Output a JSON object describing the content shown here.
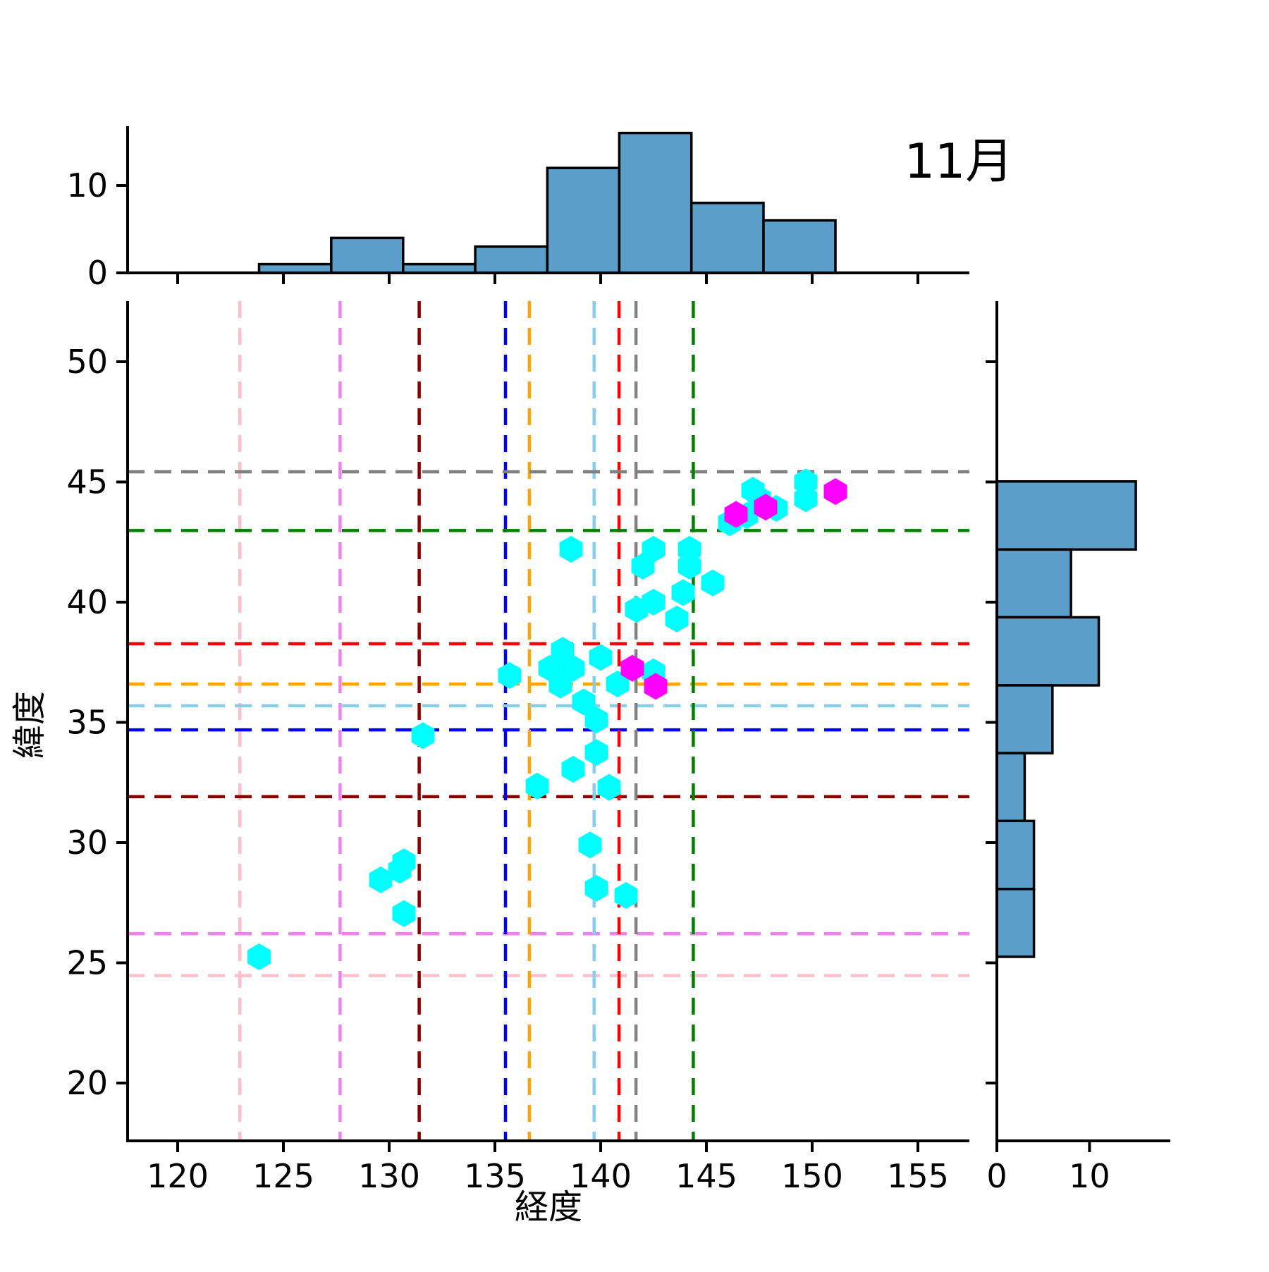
{
  "title": "11月",
  "axes": {
    "xlabel": "経度",
    "ylabel": "緯度",
    "xticks": [
      120,
      125,
      130,
      135,
      140,
      145,
      150,
      155
    ],
    "yticks": [
      20,
      25,
      30,
      35,
      40,
      45,
      50
    ],
    "xlim": [
      117.6,
      157.4
    ],
    "ylim": [
      17.6,
      52.5
    ]
  },
  "colors": {
    "hist_fill": "#5b9ec9",
    "hist_edge": "#000000",
    "scatter_main": "#00ffff",
    "scatter_highlight": "#ff00ff",
    "axis": "#000000"
  },
  "chart_data": {
    "type": "scatter",
    "layout": "joint-plot-with-marginal-histograms",
    "title": "11月",
    "xlabel": "経度",
    "ylabel": "緯度",
    "grid": false,
    "scatter": {
      "marker": "hexagon",
      "cyan_points": [
        [
          149.7,
          45.0
        ],
        [
          149.7,
          44.3
        ],
        [
          147.2,
          44.65
        ],
        [
          147.5,
          44.3
        ],
        [
          148.3,
          43.9
        ],
        [
          146.9,
          43.6
        ],
        [
          146.1,
          43.3
        ],
        [
          138.6,
          42.2
        ],
        [
          142.5,
          42.2
        ],
        [
          144.2,
          42.2
        ],
        [
          142.0,
          41.5
        ],
        [
          144.2,
          41.5
        ],
        [
          145.3,
          40.8
        ],
        [
          143.9,
          40.4
        ],
        [
          142.5,
          40.0
        ],
        [
          141.7,
          39.7
        ],
        [
          143.6,
          39.3
        ],
        [
          138.2,
          38.0
        ],
        [
          140.0,
          37.7
        ],
        [
          137.6,
          37.25
        ],
        [
          138.7,
          37.25
        ],
        [
          142.5,
          37.1
        ],
        [
          135.7,
          36.95
        ],
        [
          140.8,
          36.6
        ],
        [
          138.1,
          36.55
        ],
        [
          139.2,
          35.85
        ],
        [
          139.8,
          35.1
        ],
        [
          131.6,
          34.45
        ],
        [
          139.8,
          33.75
        ],
        [
          138.7,
          33.05
        ],
        [
          137.0,
          32.35
        ],
        [
          140.4,
          32.3
        ],
        [
          139.5,
          29.9
        ],
        [
          130.7,
          29.2
        ],
        [
          130.5,
          28.85
        ],
        [
          129.6,
          28.45
        ],
        [
          139.8,
          28.1
        ],
        [
          141.2,
          27.8
        ],
        [
          130.7,
          27.05
        ],
        [
          123.85,
          25.25
        ]
      ],
      "magenta_points": [
        [
          151.1,
          44.6
        ],
        [
          147.8,
          43.95
        ],
        [
          146.4,
          43.65
        ],
        [
          141.5,
          37.25
        ],
        [
          142.6,
          36.5
        ]
      ]
    },
    "top_histogram": {
      "axis": "longitude",
      "bin_edges": [
        123.85,
        127.26,
        130.66,
        134.07,
        137.48,
        140.88,
        144.29,
        147.7,
        151.1
      ],
      "counts": [
        1,
        4,
        1,
        3,
        12,
        16,
        8,
        6
      ],
      "tick_values": [
        0,
        10
      ]
    },
    "right_histogram": {
      "axis": "latitude",
      "bin_edges_top_to_bottom": [
        45.02,
        42.19,
        39.37,
        36.54,
        33.72,
        30.9,
        28.07,
        25.25
      ],
      "counts_top_to_bottom": [
        15,
        8,
        11,
        6,
        3,
        4,
        4
      ],
      "tick_values": [
        0,
        10
      ]
    },
    "reference_lines": [
      {
        "color_name": "pink",
        "hex": "#FFC0CB",
        "lon": 122.94,
        "lat": 24.47
      },
      {
        "color_name": "violet",
        "hex": "#EE82EE",
        "lon": 127.68,
        "lat": 26.21
      },
      {
        "color_name": "darkred",
        "hex": "#8B0000",
        "lon": 131.42,
        "lat": 31.91
      },
      {
        "color_name": "blue",
        "hex": "#0000FF",
        "lon": 135.5,
        "lat": 34.69
      },
      {
        "color_name": "orange",
        "hex": "#FFA500",
        "lon": 136.63,
        "lat": 36.59
      },
      {
        "color_name": "skyblue",
        "hex": "#87CEEB",
        "lon": 139.69,
        "lat": 35.69
      },
      {
        "color_name": "red",
        "hex": "#FF0000",
        "lon": 140.87,
        "lat": 38.27
      },
      {
        "color_name": "gray",
        "hex": "#808080",
        "lon": 141.67,
        "lat": 45.42
      },
      {
        "color_name": "green",
        "hex": "#008000",
        "lon": 144.38,
        "lat": 42.98
      }
    ]
  }
}
